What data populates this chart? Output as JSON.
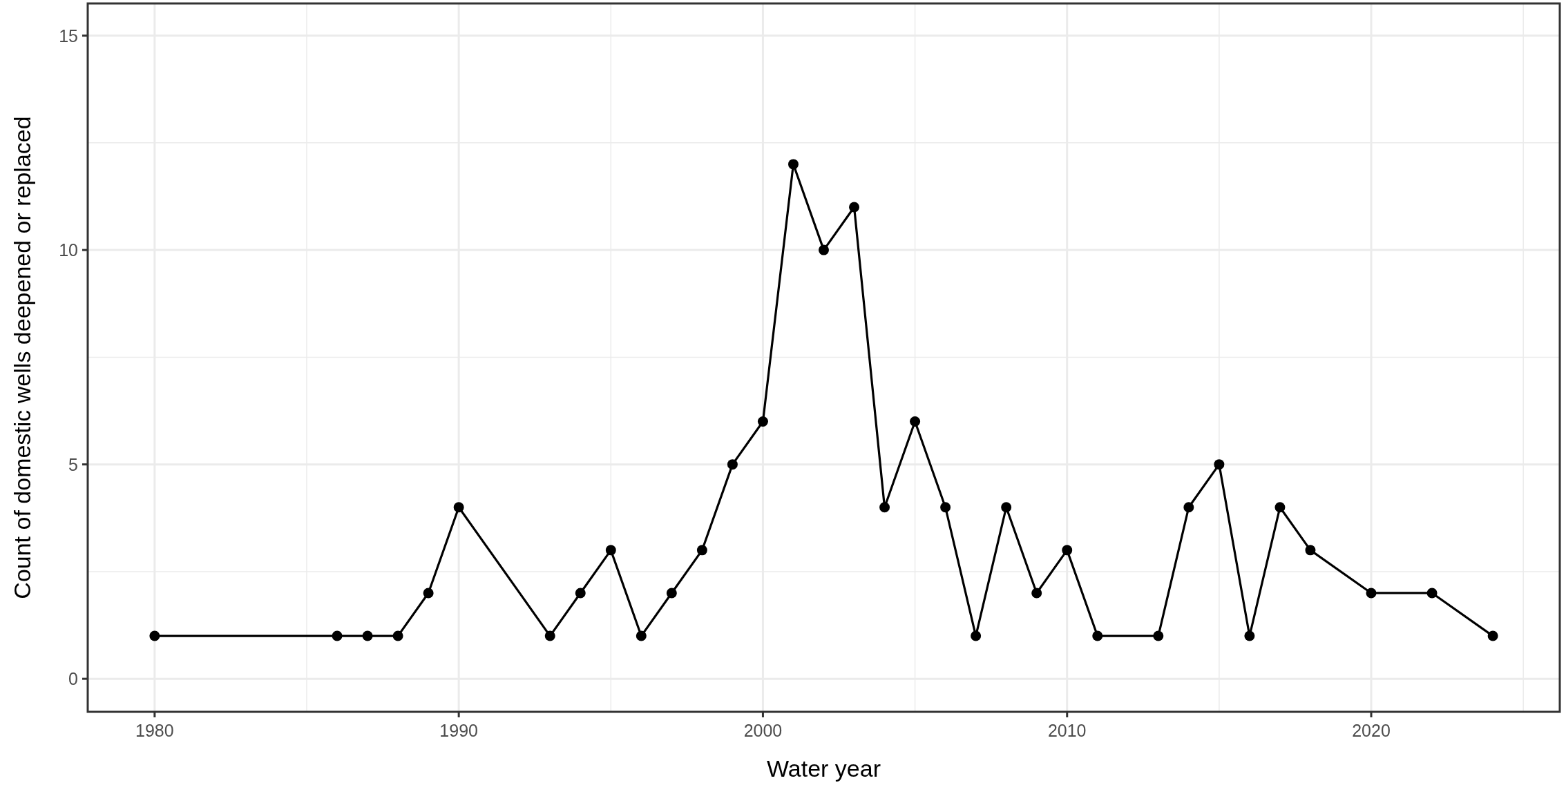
{
  "chart_data": {
    "type": "line",
    "xlabel": "Water year",
    "ylabel": "Count of domestic wells deepened or replaced",
    "x": [
      1980,
      1986,
      1987,
      1988,
      1989,
      1990,
      1993,
      1994,
      1995,
      1996,
      1997,
      1998,
      1999,
      2000,
      2001,
      2002,
      2003,
      2004,
      2005,
      2006,
      2007,
      2008,
      2009,
      2010,
      2011,
      2013,
      2014,
      2015,
      2016,
      2017,
      2018,
      2020,
      2022,
      2024
    ],
    "series": [
      {
        "color": "#000000",
        "values": [
          1,
          1,
          1,
          1,
          2,
          4,
          1,
          2,
          3,
          1,
          2,
          3,
          5,
          6,
          12,
          10,
          11,
          4,
          6,
          4,
          1,
          4,
          2,
          3,
          1,
          1,
          4,
          5,
          1,
          4,
          3,
          2,
          2,
          1
        ]
      }
    ],
    "xlim": [
      1977.8,
      2026.2
    ],
    "ylim": [
      -0.77,
      15.75
    ],
    "xticks": [
      {
        "value": 1985,
        "label": null
      },
      1980,
      1990,
      2000,
      2010,
      2020,
      {
        "value": 1995,
        "label": null
      },
      {
        "value": 2005,
        "label": null
      },
      {
        "value": 2015,
        "label": null
      },
      {
        "value": 2025,
        "label": null
      }
    ],
    "yticks": [
      0,
      5,
      10,
      15,
      {
        "value": 2.5,
        "label": null
      },
      {
        "value": 7.5,
        "label": null
      },
      {
        "value": 12.5,
        "label": null
      }
    ],
    "grid": true,
    "marker": "circle",
    "line_style": "solid"
  }
}
